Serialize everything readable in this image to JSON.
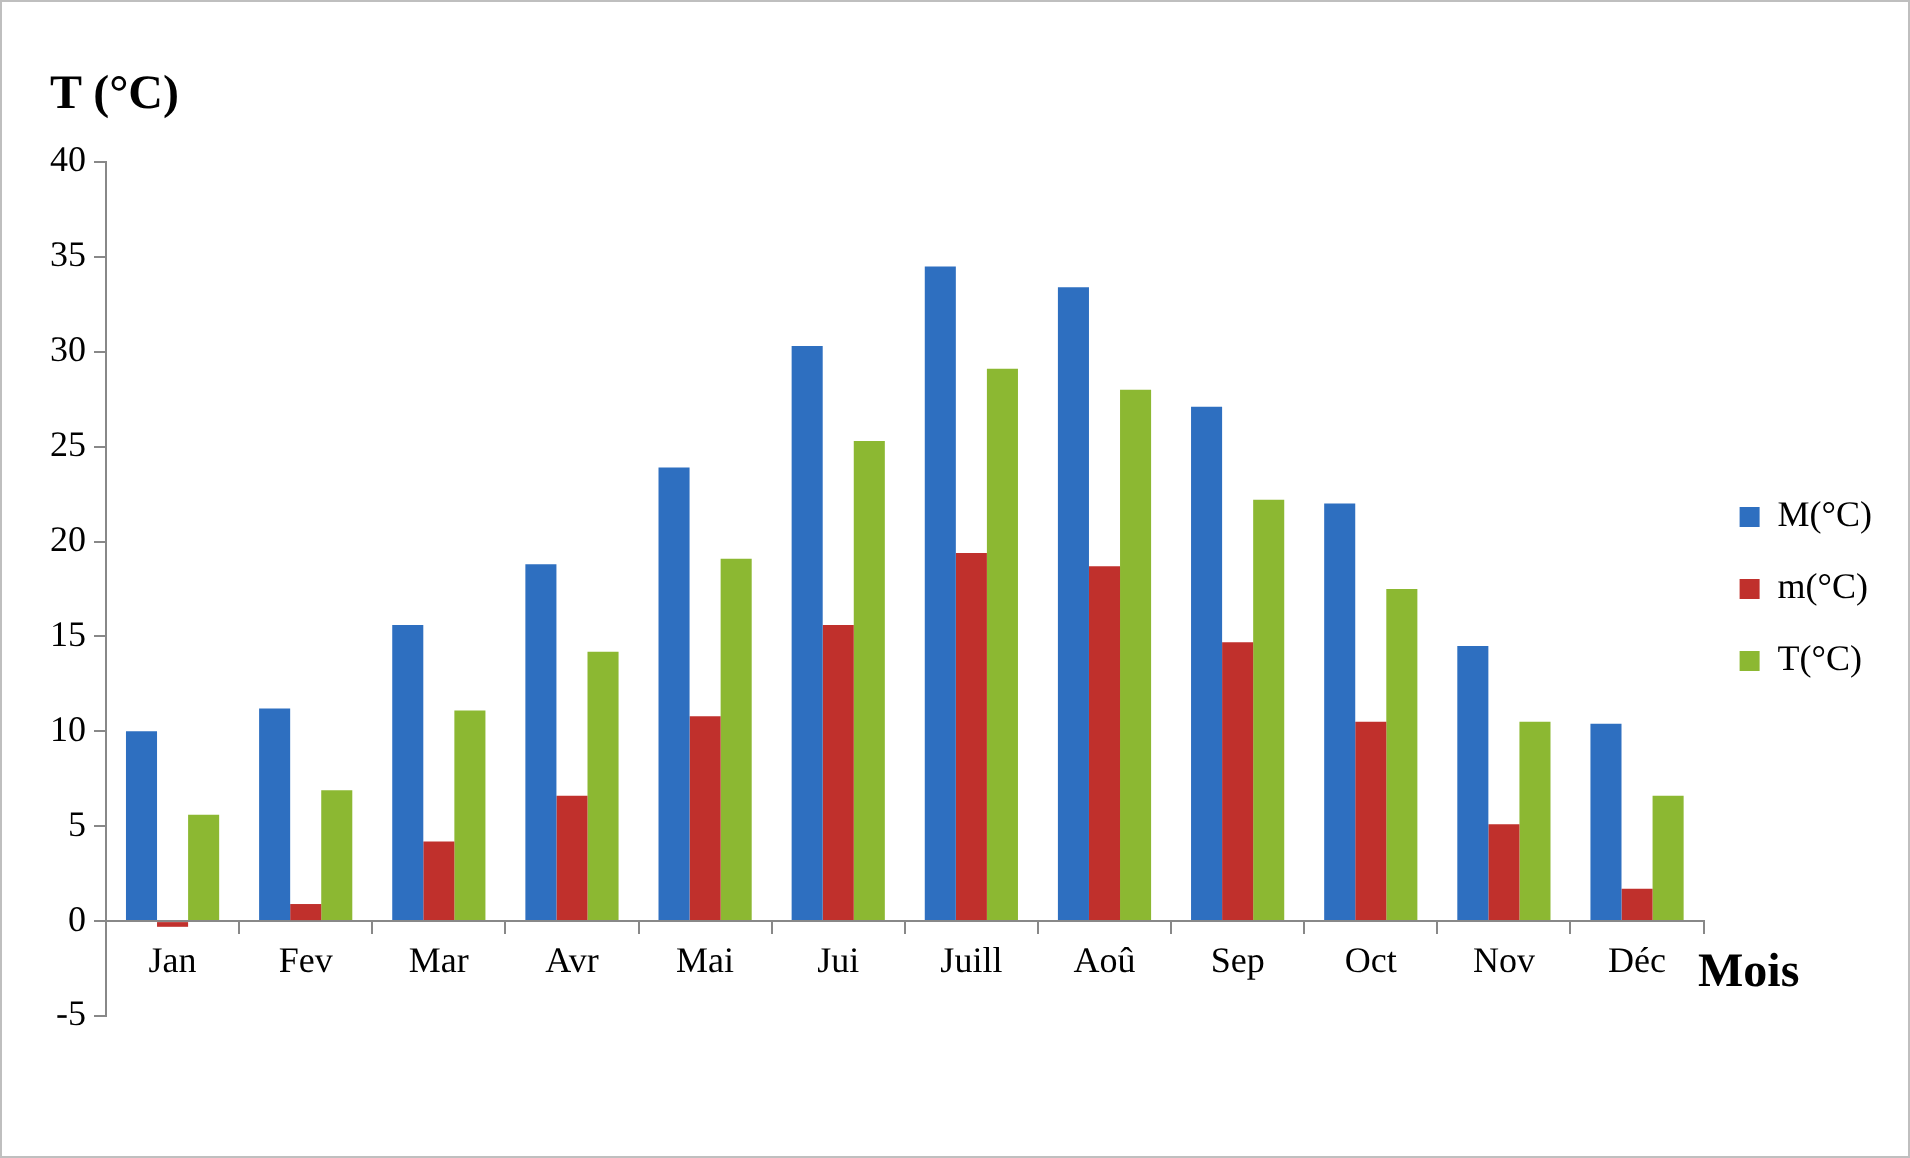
{
  "chart_data": {
    "type": "bar",
    "ylabel": "T (°C)",
    "xlabel": "Mois",
    "categories": [
      "Jan",
      "Fev",
      "Mar",
      "Avr",
      "Mai",
      "Jui",
      "Juill",
      "Aoû",
      "Sep",
      "Oct",
      "Nov",
      "Déc"
    ],
    "series": [
      {
        "name": "M(°C)",
        "color": "#2e6fc0",
        "values": [
          10,
          11.2,
          15.6,
          18.8,
          23.9,
          30.3,
          34.5,
          33.4,
          27.1,
          22,
          14.5,
          10.4
        ]
      },
      {
        "name": "m(°C)",
        "color": "#c0302c",
        "values": [
          -0.3,
          0.9,
          4.2,
          6.6,
          10.8,
          15.6,
          19.4,
          18.7,
          14.7,
          10.5,
          5.1,
          1.7
        ]
      },
      {
        "name": "T(°C)",
        "color": "#8cb832",
        "values": [
          5.6,
          6.9,
          11.1,
          14.2,
          19.1,
          25.3,
          29.1,
          28,
          22.2,
          17.5,
          10.5,
          6.6
        ]
      }
    ],
    "ylim": [
      -5,
      40
    ],
    "yticks": [
      -5,
      0,
      5,
      10,
      15,
      20,
      25,
      30,
      35,
      40
    ],
    "legend": "right"
  }
}
